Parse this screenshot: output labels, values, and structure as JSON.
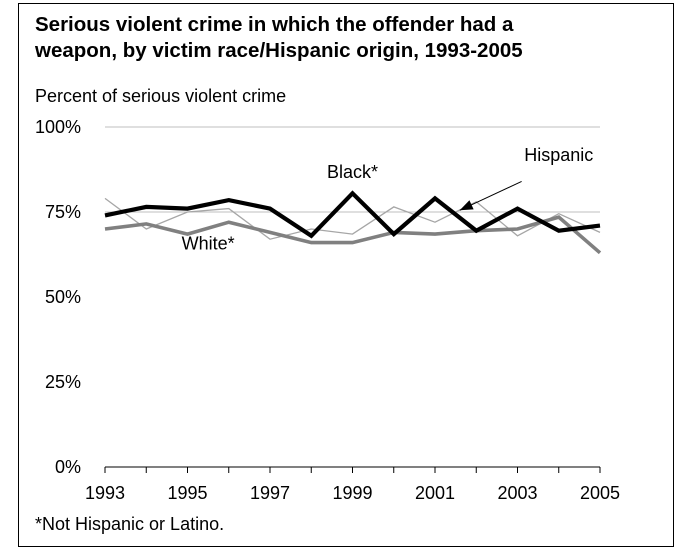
{
  "chart_data": {
    "type": "line",
    "title_line1": "Serious violent crime in which the offender had a",
    "title_line2": "weapon, by victim race/Hispanic origin, 1993-2005",
    "ylabel": "Percent of serious violent crime",
    "footnote": "*Not Hispanic or Latino.",
    "x": [
      1993,
      1994,
      1995,
      1996,
      1997,
      1998,
      1999,
      2000,
      2001,
      2002,
      2003,
      2004,
      2005
    ],
    "x_tick_labels": [
      "1993",
      "1995",
      "1997",
      "1999",
      "2001",
      "2003",
      "2005"
    ],
    "y_tick_labels": [
      "100%",
      "75%",
      "50%",
      "25%",
      "0%"
    ],
    "ylim": [
      0,
      100
    ],
    "grid": "horizontal at 75% and 100%",
    "series": [
      {
        "name": "Black*",
        "color": "#000000",
        "style": "thick",
        "values": [
          74,
          76.5,
          76,
          78.5,
          76,
          68,
          80.5,
          68.5,
          79,
          69.5,
          76,
          69.5,
          71
        ]
      },
      {
        "name": "White*",
        "color": "#808080",
        "style": "medium",
        "values": [
          70,
          71.5,
          68.5,
          72,
          69,
          66,
          66,
          69,
          68.5,
          69.5,
          70,
          73.5,
          63
        ]
      },
      {
        "name": "Hispanic",
        "color": "#a6a6a6",
        "style": "thin",
        "values": [
          79,
          70,
          75,
          76,
          67,
          70,
          68.5,
          76.5,
          72,
          78,
          68,
          74.5,
          69
        ]
      }
    ],
    "annotations": [
      {
        "text": "Black*",
        "x": 1999,
        "y": 85
      },
      {
        "text": "White*",
        "x": 1995.5,
        "y": 64
      },
      {
        "text": "Hispanic",
        "x": 2004,
        "y": 90
      }
    ]
  }
}
